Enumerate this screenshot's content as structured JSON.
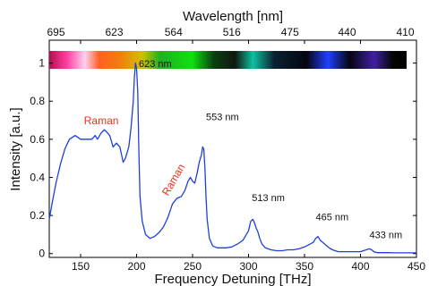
{
  "colors": {
    "series": "#1f3fdc",
    "raman": "#e8321e",
    "axis": "#000000"
  },
  "chart_data": {
    "type": "line",
    "xlabel": "Frequency Detuning [THz]",
    "ylabel": "Intensity [a.u.]",
    "top_xlabel": "Wavelength [nm]",
    "xlim": [
      122,
      450
    ],
    "ylim": [
      -0.02,
      1.12
    ],
    "x_ticks": [
      150,
      200,
      250,
      300,
      350,
      400,
      450
    ],
    "y_ticks": [
      0,
      0.2,
      0.4,
      0.6,
      0.8,
      1
    ],
    "y_tick_labels": [
      "0",
      "0.2",
      "0.4",
      "0.6",
      "0.8",
      "1"
    ],
    "top_ticks": [
      {
        "x": 128,
        "label": "695"
      },
      {
        "x": 180,
        "label": "623"
      },
      {
        "x": 233,
        "label": "564"
      },
      {
        "x": 285,
        "label": "516"
      },
      {
        "x": 337,
        "label": "475"
      },
      {
        "x": 388,
        "label": "440"
      },
      {
        "x": 440,
        "label": "410"
      }
    ],
    "grid": false,
    "spectrum_strip": "rainbow camera image above the plot",
    "annotations": [
      {
        "text": "623 nm",
        "x": 202,
        "y": 0.98,
        "color": "#000000"
      },
      {
        "text": "553 nm",
        "x": 262,
        "y": 0.7,
        "color": "#000000"
      },
      {
        "text": "513 nm",
        "x": 303,
        "y": 0.275,
        "color": "#000000"
      },
      {
        "text": "465 nm",
        "x": 360,
        "y": 0.175,
        "color": "#000000"
      },
      {
        "text": "433 nm",
        "x": 408,
        "y": 0.08,
        "color": "#000000"
      },
      {
        "text": "Raman",
        "x": 153,
        "y": 0.68,
        "color": "#e8321e"
      },
      {
        "text": "Raman",
        "x": 228,
        "y": 0.3,
        "color": "#e8321e",
        "rotate": -60
      }
    ],
    "series": [
      {
        "x": [
          122,
          125,
          128,
          132,
          136,
          140,
          145,
          150,
          155,
          160,
          163,
          165,
          168,
          171,
          173,
          176,
          179,
          182,
          185,
          188,
          190,
          193,
          195,
          197,
          198,
          199,
          200,
          201,
          202,
          203,
          205,
          208,
          212,
          216,
          220,
          224,
          228,
          232,
          236,
          240,
          243,
          246,
          248,
          250,
          252,
          254,
          256,
          258,
          259,
          260,
          261,
          262,
          263,
          265,
          268,
          272,
          276,
          280,
          285,
          290,
          295,
          300,
          302,
          304,
          306,
          307,
          308,
          309,
          310,
          312,
          315,
          320,
          325,
          330,
          335,
          340,
          345,
          350,
          355,
          358,
          360,
          362,
          364,
          366,
          368,
          370,
          372,
          375,
          380,
          385,
          390,
          395,
          400,
          405,
          408,
          410,
          412,
          415,
          420,
          425,
          430,
          435,
          440,
          445,
          450
        ],
        "y": [
          0.18,
          0.28,
          0.37,
          0.47,
          0.55,
          0.6,
          0.62,
          0.6,
          0.6,
          0.6,
          0.62,
          0.6,
          0.63,
          0.65,
          0.64,
          0.62,
          0.56,
          0.58,
          0.56,
          0.48,
          0.5,
          0.56,
          0.66,
          0.8,
          0.92,
          1.0,
          0.97,
          0.85,
          0.55,
          0.3,
          0.17,
          0.1,
          0.08,
          0.09,
          0.11,
          0.14,
          0.19,
          0.26,
          0.29,
          0.3,
          0.33,
          0.38,
          0.4,
          0.38,
          0.37,
          0.42,
          0.48,
          0.52,
          0.56,
          0.55,
          0.45,
          0.3,
          0.18,
          0.08,
          0.04,
          0.03,
          0.03,
          0.03,
          0.035,
          0.05,
          0.07,
          0.12,
          0.17,
          0.18,
          0.15,
          0.13,
          0.12,
          0.1,
          0.08,
          0.05,
          0.03,
          0.02,
          0.015,
          0.015,
          0.02,
          0.02,
          0.025,
          0.035,
          0.05,
          0.06,
          0.08,
          0.09,
          0.07,
          0.06,
          0.05,
          0.04,
          0.03,
          0.02,
          0.01,
          0.01,
          0.01,
          0.01,
          0.01,
          0.02,
          0.025,
          0.02,
          0.01,
          0.005,
          0.005,
          0.005,
          0.004,
          0.004,
          0.004,
          0.004,
          0.004
        ]
      }
    ]
  }
}
